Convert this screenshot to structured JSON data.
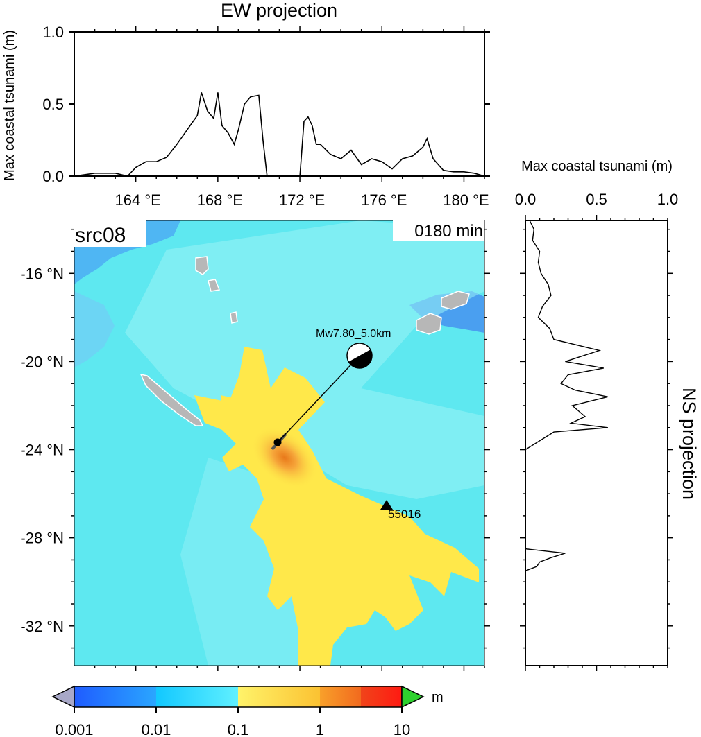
{
  "ew_panel": {
    "title": "EW projection",
    "ylabel": "Max coastal tsunami (m)",
    "y_ticks": [
      "0.0",
      "0.5",
      "1.0"
    ],
    "x_ticks": [
      "164 °E",
      "168 °E",
      "172 °E",
      "176 °E",
      "180 °E"
    ]
  },
  "ns_panel": {
    "title": "NS projection",
    "xlabel": "Max coastal tsunami (m)",
    "x_ticks": [
      "0.0",
      "0.5",
      "1.0"
    ]
  },
  "map": {
    "source_label": "src08",
    "time_label": "0180 min",
    "lat_ticks": [
      "-16 °N",
      "-20 °N",
      "-24 °N",
      "-28 °N",
      "-32 °N"
    ],
    "event_label": "Mw7.80_5.0km",
    "station_label": "55016",
    "colors": {
      "ocean_low": "#5ee8f0",
      "ocean_mid": "#9af2f6",
      "deep_blue": "#3aa0f0",
      "wave_yellow": "#ffe84a",
      "wave_orange": "#f7b030",
      "land": "#b7b7b7"
    }
  },
  "colorbar": {
    "unit": "m",
    "tick_labels": [
      "0.001",
      "0.01",
      "0.1",
      "1",
      "10"
    ],
    "colors": [
      "#2a73ff",
      "#1ec8ff",
      "#a8fbff",
      "#ffe84a",
      "#f99a2a",
      "#ff2a1a"
    ]
  },
  "chart_data": [
    {
      "type": "line",
      "title": "EW projection",
      "ylabel": "Max coastal tsunami (m)",
      "ylim": [
        0,
        1
      ],
      "xlim": [
        161,
        181
      ],
      "x": [
        161.0,
        162.0,
        163.0,
        163.6,
        164.0,
        164.5,
        165.0,
        165.5,
        166.0,
        166.5,
        167.0,
        167.2,
        167.5,
        167.8,
        168.0,
        168.2,
        168.5,
        168.8,
        169.0,
        169.3,
        169.6,
        170.0,
        170.2,
        170.4,
        171.0,
        172.0,
        172.2,
        172.4,
        172.6,
        172.8,
        173.0,
        173.5,
        174.0,
        174.5,
        175.0,
        175.5,
        176.0,
        176.5,
        177.0,
        177.5,
        178.0,
        178.2,
        178.5,
        179.0,
        179.5,
        180.0,
        180.5,
        181.0
      ],
      "values": [
        0.0,
        0.02,
        0.02,
        0.0,
        0.06,
        0.1,
        0.1,
        0.13,
        0.22,
        0.32,
        0.42,
        0.58,
        0.45,
        0.4,
        0.58,
        0.35,
        0.3,
        0.22,
        0.32,
        0.5,
        0.55,
        0.56,
        0.25,
        0.0,
        0.0,
        0.0,
        0.38,
        0.41,
        0.35,
        0.22,
        0.22,
        0.15,
        0.12,
        0.18,
        0.08,
        0.12,
        0.1,
        0.05,
        0.12,
        0.14,
        0.2,
        0.26,
        0.12,
        0.04,
        0.03,
        0.03,
        0.02,
        0.0
      ]
    },
    {
      "type": "line",
      "title": "NS projection",
      "xlabel": "Max coastal tsunami (m)",
      "xlim": [
        0,
        1
      ],
      "y_lat": [
        -13.6,
        -14.0,
        -14.5,
        -15.0,
        -15.5,
        -16.0,
        -16.5,
        -17.0,
        -17.5,
        -18.0,
        -18.5,
        -19.0,
        -19.5,
        -20.0,
        -20.3,
        -20.6,
        -21.0,
        -21.3,
        -21.6,
        -22.0,
        -22.5,
        -22.8,
        -23.0,
        -23.2,
        -24.0,
        -27.0,
        -28.5,
        -28.7,
        -28.9,
        -29.1,
        -29.3,
        -29.5
      ],
      "values": [
        0.03,
        0.06,
        0.05,
        0.1,
        0.09,
        0.11,
        0.16,
        0.18,
        0.12,
        0.09,
        0.17,
        0.2,
        0.52,
        0.28,
        0.55,
        0.3,
        0.25,
        0.35,
        0.58,
        0.33,
        0.42,
        0.32,
        0.58,
        0.2,
        0.0,
        0.0,
        0.0,
        0.28,
        0.18,
        0.1,
        0.08,
        0.0
      ]
    }
  ]
}
